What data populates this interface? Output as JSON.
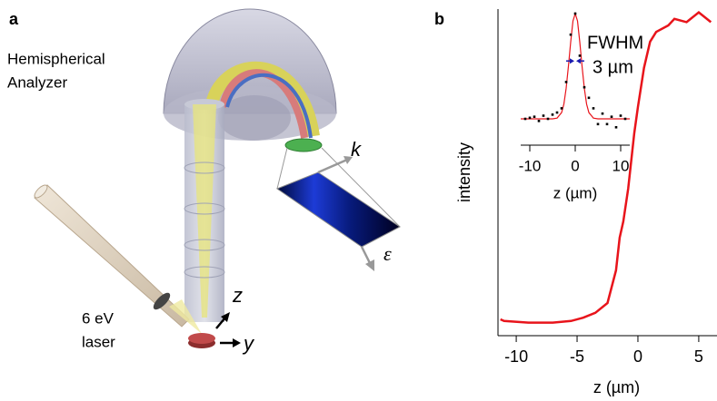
{
  "diagram": {
    "panel_label": "a",
    "analyzer_label": [
      "Hemispherical",
      "Analyzer"
    ],
    "laser_label": [
      "6 eV",
      "laser"
    ],
    "axis_z": "z",
    "axis_y": "y",
    "axis_k": "k",
    "axis_epsilon": "ε"
  },
  "panel_b_label": "b",
  "chart_data": [
    {
      "type": "line",
      "x_label": "z (µm)",
      "y_label": "intensity",
      "color": "#e8141b",
      "xlim": [
        -11.5,
        6.5
      ],
      "xticks": [
        -10,
        -5,
        0,
        5
      ],
      "ylim": [
        0,
        1
      ],
      "x": [
        -11.3,
        -11,
        -9,
        -7,
        -5.5,
        -4.5,
        -3.5,
        -2.5,
        -1.8,
        -1.5,
        -1.2,
        -0.8,
        -0.3,
        0,
        0.5,
        1,
        1.5,
        2.5,
        3,
        4,
        5,
        6
      ],
      "values": [
        0.05,
        0.045,
        0.04,
        0.04,
        0.045,
        0.055,
        0.07,
        0.1,
        0.2,
        0.3,
        0.35,
        0.45,
        0.62,
        0.7,
        0.82,
        0.9,
        0.93,
        0.95,
        0.97,
        0.96,
        0.99,
        0.96
      ]
    },
    {
      "type": "scatter",
      "x_label": "z (µm)",
      "color": "#000000",
      "xlim": [
        -12,
        12
      ],
      "xticks": [
        -10,
        0,
        10
      ],
      "ylim": [
        -0.25,
        1.0
      ],
      "x": [
        -11,
        -10,
        -9,
        -8,
        -7,
        -6,
        -5,
        -4,
        -3,
        -2,
        -1,
        0,
        1,
        2,
        3,
        4,
        5,
        6,
        7,
        8,
        9,
        10,
        11
      ],
      "values": [
        0,
        0.01,
        0.02,
        -0.02,
        0.03,
        0.0,
        0.04,
        0.06,
        0.1,
        0.35,
        0.8,
        1.0,
        0.6,
        0.3,
        0.2,
        0.1,
        -0.05,
        0.05,
        -0.05,
        0.02,
        -0.08,
        0.03,
        0.0
      ],
      "fit": {
        "color": "#e8141b",
        "x": [
          -12,
          -8,
          -5,
          -4,
          -3,
          -2.5,
          -2,
          -1.5,
          -1,
          -0.5,
          0,
          0.5,
          1,
          1.5,
          2,
          2.5,
          3,
          4,
          5,
          8,
          12
        ],
        "values": [
          0,
          0,
          0,
          0.007,
          0.06,
          0.14,
          0.29,
          0.5,
          0.73,
          0.93,
          1,
          0.93,
          0.73,
          0.5,
          0.29,
          0.14,
          0.06,
          0.007,
          0,
          0,
          0
        ]
      },
      "annotations": [
        "FWHM",
        "3 µm"
      ],
      "annotation_color": "#1a1ab0"
    }
  ]
}
